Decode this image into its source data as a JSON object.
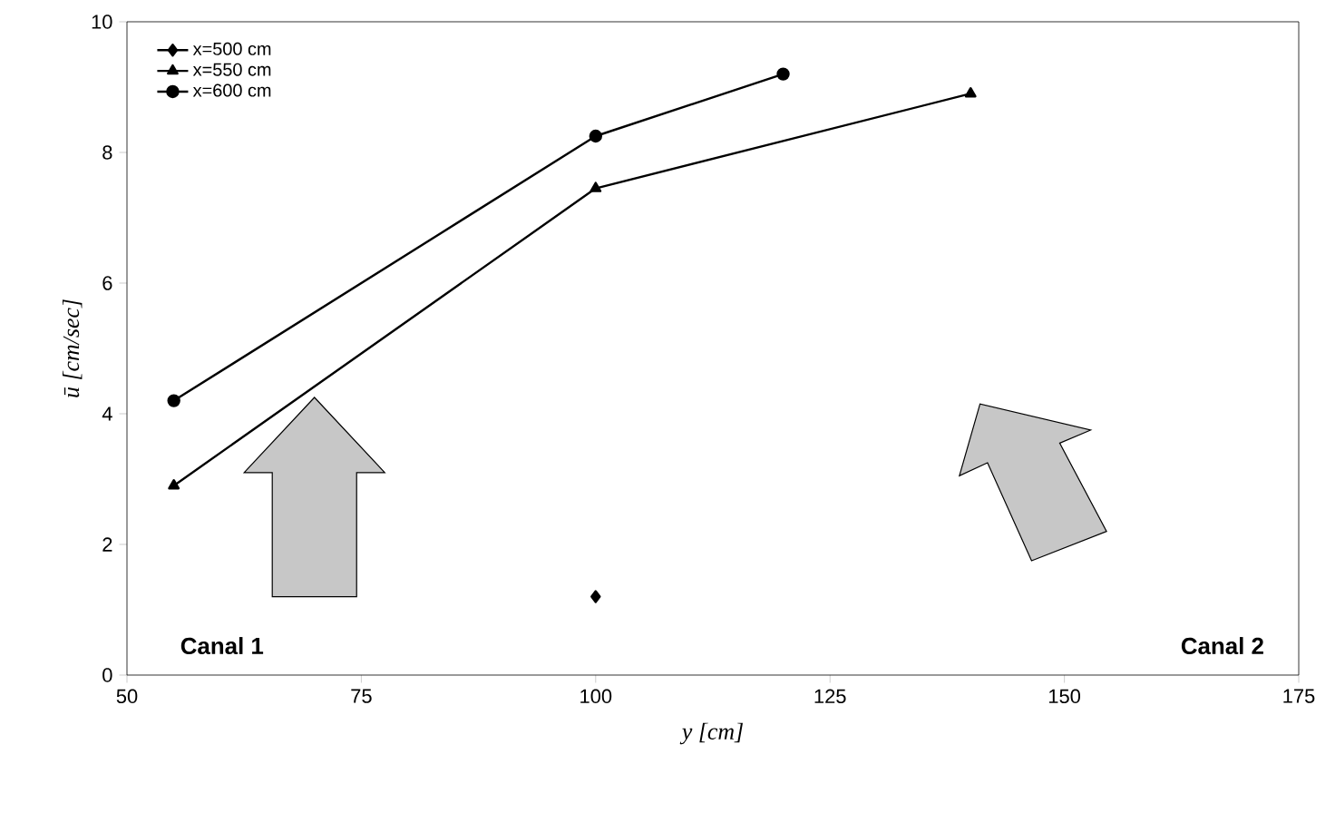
{
  "chart_data": {
    "type": "line",
    "xlabel": "y [cm]",
    "ylabel": "ū [cm/sec]",
    "xlim": [
      50,
      175
    ],
    "xticks": [
      50,
      75,
      100,
      125,
      150,
      175
    ],
    "ylim": [
      0,
      10
    ],
    "yticks": [
      0,
      2,
      4,
      6,
      8,
      10
    ],
    "grid": false,
    "legend": "top left",
    "annotations": [
      "Canal 1",
      "Canal 2"
    ],
    "series": [
      {
        "name": "x=500 cm",
        "color": "#000000",
        "marker": "diamond",
        "x": [
          100
        ],
        "values": [
          1.2
        ]
      },
      {
        "name": "x=550 cm",
        "color": "#000000",
        "marker": "triangle",
        "x": [
          55,
          100,
          140
        ],
        "values": [
          2.9,
          7.45,
          8.9
        ]
      },
      {
        "name": "x=600 cm",
        "color": "#000000",
        "marker": "circle",
        "x": [
          55,
          100,
          120
        ],
        "values": [
          4.2,
          8.25,
          9.2
        ]
      }
    ]
  }
}
